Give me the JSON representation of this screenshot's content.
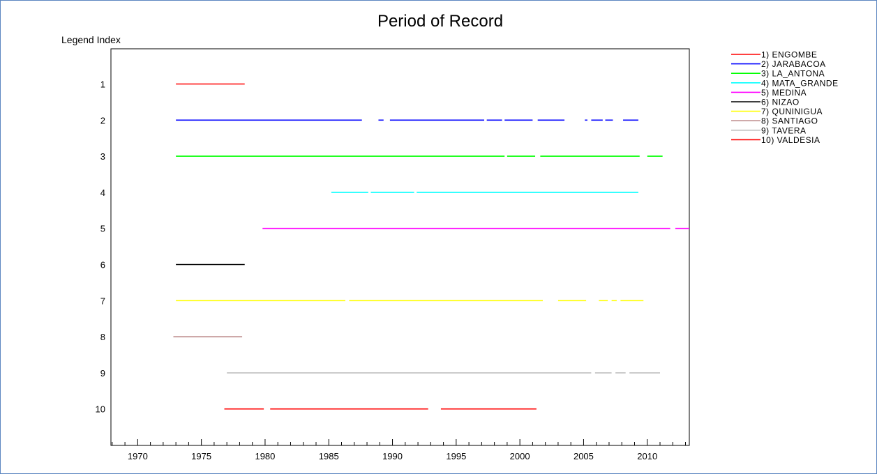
{
  "chart_data": {
    "type": "gantt",
    "title": "Period of Record",
    "ylabel": "Legend Index",
    "xlabel": "",
    "xlim": [
      1967.9,
      2013.3
    ],
    "x_ticks": [
      1970,
      1975,
      1980,
      1985,
      1990,
      1995,
      2000,
      2005,
      2010
    ],
    "y_ticks": [
      1,
      2,
      3,
      4,
      5,
      6,
      7,
      8,
      9,
      10
    ],
    "ylim": [
      0,
      11
    ],
    "legend_position": "right",
    "series": [
      {
        "index": 1,
        "name": "1) ENGOMBE",
        "color": "#ff0000",
        "segments": [
          [
            1973.0,
            1978.4
          ]
        ]
      },
      {
        "index": 2,
        "name": "2) JARABACOA",
        "color": "#0000ff",
        "segments": [
          [
            1973.0,
            1987.6
          ],
          [
            1988.9,
            1989.3
          ],
          [
            1989.8,
            1997.2
          ],
          [
            1997.4,
            1998.6
          ],
          [
            1998.8,
            2001.0
          ],
          [
            2001.4,
            2003.5
          ],
          [
            2005.1,
            2005.3
          ],
          [
            2005.6,
            2006.5
          ],
          [
            2006.7,
            2007.3
          ],
          [
            2008.1,
            2009.3
          ]
        ]
      },
      {
        "index": 3,
        "name": "3) LA_ANTONA",
        "color": "#00ff00",
        "segments": [
          [
            1973.0,
            1998.8
          ],
          [
            1999.0,
            2001.2
          ],
          [
            2001.6,
            2009.4
          ],
          [
            2010.0,
            2011.2
          ]
        ]
      },
      {
        "index": 4,
        "name": "4) MATA_GRANDE",
        "color": "#00ffff",
        "segments": [
          [
            1985.2,
            1988.1
          ],
          [
            1988.3,
            1991.7
          ],
          [
            1991.9,
            2009.3
          ]
        ]
      },
      {
        "index": 5,
        "name": "5) MEDINA",
        "color": "#ff00ff",
        "segments": [
          [
            1979.8,
            2011.8
          ],
          [
            2012.2,
            2013.3
          ]
        ]
      },
      {
        "index": 6,
        "name": "6) NIZAO",
        "color": "#000000",
        "segments": [
          [
            1973.0,
            1978.4
          ]
        ]
      },
      {
        "index": 7,
        "name": "7) QUNINIGUA",
        "color": "#ffff00",
        "segments": [
          [
            1973.0,
            1986.3
          ],
          [
            1986.6,
            2001.8
          ],
          [
            2003.0,
            2005.2
          ],
          [
            2006.2,
            2006.9
          ],
          [
            2007.2,
            2007.6
          ],
          [
            2007.9,
            2009.7
          ]
        ]
      },
      {
        "index": 8,
        "name": "8) SANTIAGO",
        "color": "#c09090",
        "segments": [
          [
            1972.8,
            1978.2
          ]
        ]
      },
      {
        "index": 9,
        "name": "9) TAVERA",
        "color": "#c0c0c0",
        "segments": [
          [
            1977.0,
            2005.6
          ],
          [
            2005.9,
            2007.2
          ],
          [
            2007.5,
            2008.3
          ],
          [
            2008.6,
            2011.0
          ]
        ]
      },
      {
        "index": 10,
        "name": "10) VALDESIA",
        "color": "#ff0000",
        "segments": [
          [
            1976.8,
            1979.9
          ],
          [
            1980.4,
            1992.8
          ],
          [
            1993.8,
            2001.3
          ]
        ]
      }
    ]
  }
}
